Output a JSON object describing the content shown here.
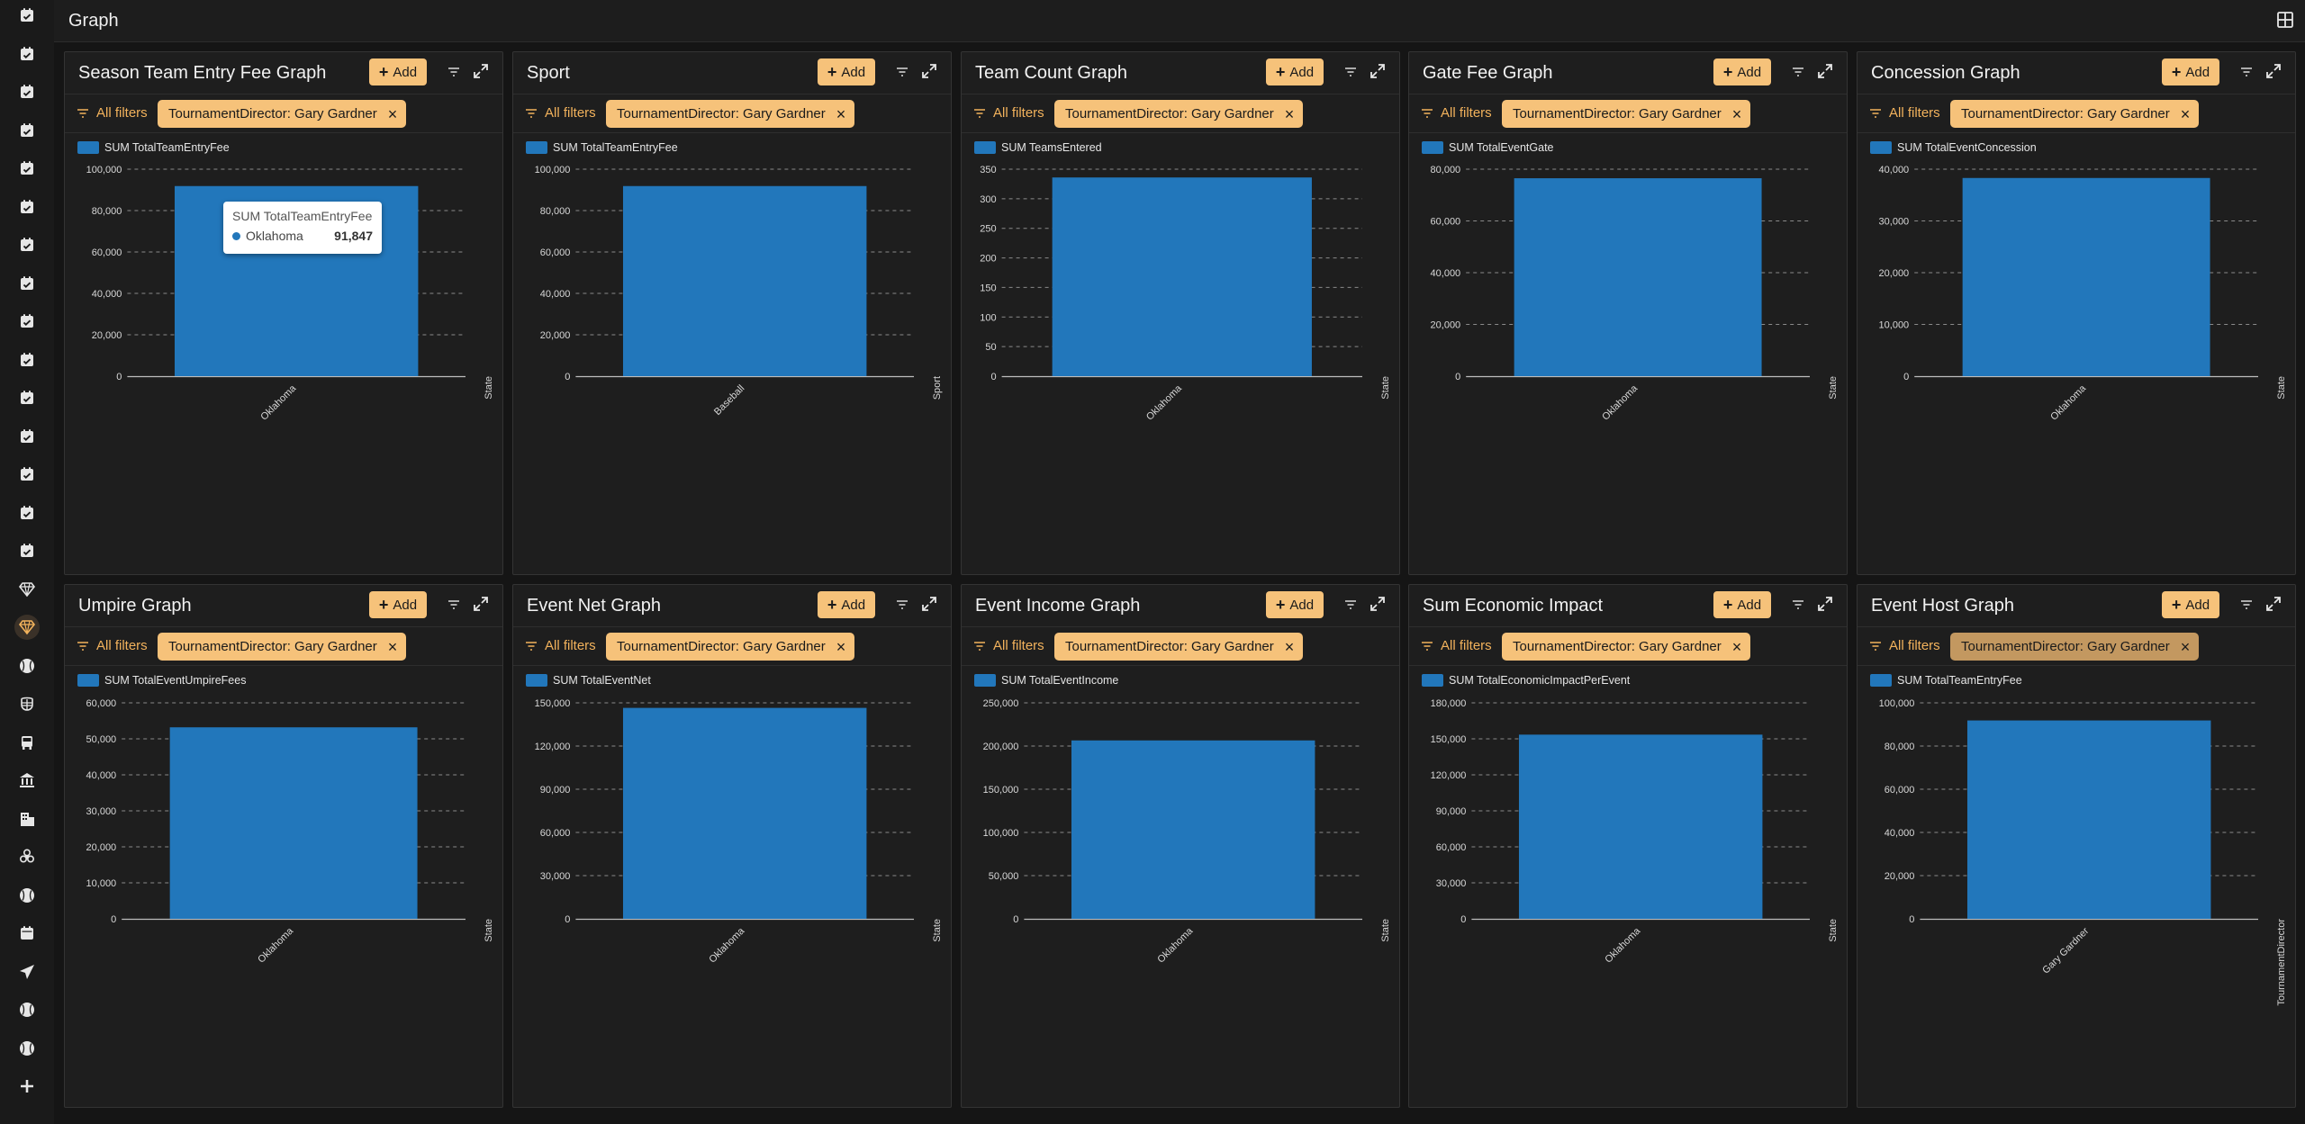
{
  "page": {
    "title": "Graph"
  },
  "sidebar": {
    "items": [
      {
        "icon": "calendar-check-icon"
      },
      {
        "icon": "calendar-check-icon"
      },
      {
        "icon": "calendar-check-icon"
      },
      {
        "icon": "calendar-check-icon"
      },
      {
        "icon": "calendar-check-icon"
      },
      {
        "icon": "calendar-check-icon"
      },
      {
        "icon": "calendar-check-icon"
      },
      {
        "icon": "calendar-check-icon"
      },
      {
        "icon": "calendar-check-icon"
      },
      {
        "icon": "calendar-check-icon"
      },
      {
        "icon": "calendar-check-icon"
      },
      {
        "icon": "calendar-check-icon"
      },
      {
        "icon": "calendar-check-icon"
      },
      {
        "icon": "calendar-check-icon"
      },
      {
        "icon": "calendar-check-icon"
      },
      {
        "icon": "diamond-icon"
      },
      {
        "icon": "diamond-icon",
        "active": true
      },
      {
        "icon": "baseball-icon"
      },
      {
        "icon": "umpire-mask-icon"
      },
      {
        "icon": "bus-icon"
      },
      {
        "icon": "bank-icon"
      },
      {
        "icon": "building-icon"
      },
      {
        "icon": "biohazard-icon"
      },
      {
        "icon": "baseball-icon"
      },
      {
        "icon": "calendar-icon"
      },
      {
        "icon": "send-icon"
      },
      {
        "icon": "baseball-icon"
      },
      {
        "icon": "baseball-icon"
      },
      {
        "icon": "plus-icon"
      }
    ]
  },
  "common": {
    "add_label": "Add",
    "all_filters_label": "All filters",
    "filter_chip": "TournamentDirector: Gary Gardner"
  },
  "colors": {
    "accent": "#f6c27a",
    "bar": "#2277bb",
    "background": "#151515",
    "panel": "#1e1e1e"
  },
  "tooltip": {
    "series": "SUM TotalTeamEntryFee",
    "category": "Oklahoma",
    "value": "91,847"
  },
  "panels": [
    {
      "title": "Season Team Entry Fee Graph",
      "legend": "SUM TotalTeamEntryFee",
      "axis_right": "State"
    },
    {
      "title": "Sport",
      "legend": "SUM TotalTeamEntryFee",
      "axis_right": "Sport"
    },
    {
      "title": "Team Count Graph",
      "legend": "SUM TeamsEntered",
      "axis_right": "State"
    },
    {
      "title": "Gate Fee Graph",
      "legend": "SUM TotalEventGate",
      "axis_right": "State"
    },
    {
      "title": "Concession Graph",
      "legend": "SUM TotalEventConcession",
      "axis_right": "State"
    },
    {
      "title": "Umpire Graph",
      "legend": "SUM TotalEventUmpireFees",
      "axis_right": "State"
    },
    {
      "title": "Event Net Graph",
      "legend": "SUM TotalEventNet",
      "axis_right": "State"
    },
    {
      "title": "Event Income Graph",
      "legend": "SUM TotalEventIncome",
      "axis_right": "State"
    },
    {
      "title": "Sum Economic Impact",
      "legend": "SUM TotalEconomicImpactPerEvent",
      "axis_right": "State"
    },
    {
      "title": "Event Host Graph",
      "legend": "SUM TotalTeamEntryFee",
      "axis_right": "TournamentDirector"
    }
  ],
  "chart_data": [
    {
      "type": "bar",
      "series": [
        {
          "name": "SUM TotalTeamEntryFee",
          "values": [
            91847
          ]
        }
      ],
      "categories": [
        "Oklahoma"
      ],
      "ylim": [
        0,
        100000
      ],
      "yticks": [
        0,
        20000,
        40000,
        60000,
        80000,
        100000
      ],
      "ytick_labels": [
        "0",
        "20,000",
        "40,000",
        "60,000",
        "80,000",
        "100,000"
      ],
      "xlabel": "State",
      "grid": true
    },
    {
      "type": "bar",
      "series": [
        {
          "name": "SUM TotalTeamEntryFee",
          "values": [
            91847
          ]
        }
      ],
      "categories": [
        "Baseball"
      ],
      "ylim": [
        0,
        100000
      ],
      "yticks": [
        0,
        20000,
        40000,
        60000,
        80000,
        100000
      ],
      "ytick_labels": [
        "0",
        "20,000",
        "40,000",
        "60,000",
        "80,000",
        "100,000"
      ],
      "xlabel": "Sport",
      "grid": true
    },
    {
      "type": "bar",
      "series": [
        {
          "name": "SUM TeamsEntered",
          "values": [
            336
          ]
        }
      ],
      "categories": [
        "Oklahoma"
      ],
      "ylim": [
        0,
        350
      ],
      "yticks": [
        0,
        50,
        100,
        150,
        200,
        250,
        300,
        350
      ],
      "ytick_labels": [
        "0",
        "50",
        "100",
        "150",
        "200",
        "250",
        "300",
        "350"
      ],
      "xlabel": "State",
      "grid": true
    },
    {
      "type": "bar",
      "series": [
        {
          "name": "SUM TotalEventGate",
          "values": [
            76500
          ]
        }
      ],
      "categories": [
        "Oklahoma"
      ],
      "ylim": [
        0,
        80000
      ],
      "yticks": [
        0,
        20000,
        40000,
        60000,
        80000
      ],
      "ytick_labels": [
        "0",
        "20,000",
        "40,000",
        "60,000",
        "80,000"
      ],
      "xlabel": "State",
      "grid": true
    },
    {
      "type": "bar",
      "series": [
        {
          "name": "SUM TotalEventConcession",
          "values": [
            38300
          ]
        }
      ],
      "categories": [
        "Oklahoma"
      ],
      "ylim": [
        0,
        40000
      ],
      "yticks": [
        0,
        10000,
        20000,
        30000,
        40000
      ],
      "ytick_labels": [
        "0",
        "10,000",
        "20,000",
        "30,000",
        "40,000"
      ],
      "xlabel": "State",
      "grid": true
    },
    {
      "type": "bar",
      "series": [
        {
          "name": "SUM TotalEventUmpireFees",
          "values": [
            53200
          ]
        }
      ],
      "categories": [
        "Oklahoma"
      ],
      "ylim": [
        0,
        60000
      ],
      "yticks": [
        0,
        10000,
        20000,
        30000,
        40000,
        50000,
        60000
      ],
      "ytick_labels": [
        "0",
        "10,000",
        "20,000",
        "30,000",
        "40,000",
        "50,000",
        "60,000"
      ],
      "xlabel": "State",
      "grid": true
    },
    {
      "type": "bar",
      "series": [
        {
          "name": "SUM TotalEventNet",
          "values": [
            146500
          ]
        }
      ],
      "categories": [
        "Oklahoma"
      ],
      "ylim": [
        0,
        150000
      ],
      "yticks": [
        0,
        30000,
        60000,
        90000,
        120000,
        150000
      ],
      "ytick_labels": [
        "0",
        "30,000",
        "60,000",
        "90,000",
        "120,000",
        "150,000"
      ],
      "xlabel": "State",
      "grid": true
    },
    {
      "type": "bar",
      "series": [
        {
          "name": "SUM TotalEventIncome",
          "values": [
            206500
          ]
        }
      ],
      "categories": [
        "Oklahoma"
      ],
      "ylim": [
        0,
        250000
      ],
      "yticks": [
        0,
        50000,
        100000,
        150000,
        200000,
        250000
      ],
      "ytick_labels": [
        "0",
        "50,000",
        "100,000",
        "150,000",
        "200,000",
        "250,000"
      ],
      "xlabel": "State",
      "grid": true
    },
    {
      "type": "bar",
      "series": [
        {
          "name": "SUM TotalEconomicImpactPerEvent",
          "values": [
            153500
          ]
        }
      ],
      "categories": [
        "Oklahoma"
      ],
      "ylim": [
        0,
        180000
      ],
      "yticks": [
        0,
        30000,
        60000,
        90000,
        120000,
        150000,
        180000
      ],
      "ytick_labels": [
        "0",
        "30,000",
        "60,000",
        "90,000",
        "120,000",
        "150,000",
        "180,000"
      ],
      "xlabel": "State",
      "grid": true
    },
    {
      "type": "bar",
      "series": [
        {
          "name": "SUM TotalTeamEntryFee",
          "values": [
            91847
          ]
        }
      ],
      "categories": [
        "Gary Gardner"
      ],
      "ylim": [
        0,
        100000
      ],
      "yticks": [
        0,
        20000,
        40000,
        60000,
        80000,
        100000
      ],
      "ytick_labels": [
        "0",
        "20,000",
        "40,000",
        "60,000",
        "80,000",
        "100,000"
      ],
      "xlabel": "TournamentDirector",
      "grid": true
    }
  ]
}
